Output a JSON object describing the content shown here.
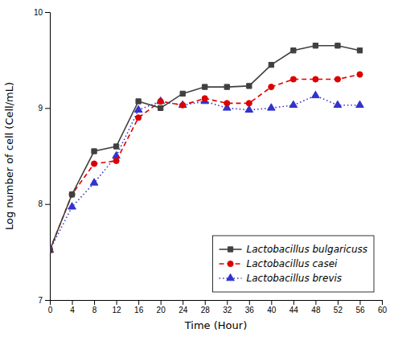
{
  "chart_data": {
    "type": "line",
    "x": [
      0,
      4,
      8,
      12,
      16,
      20,
      24,
      28,
      32,
      36,
      40,
      44,
      48,
      52,
      56
    ],
    "series": [
      {
        "name": "Lactobacillus bulgaricuss",
        "color": "#404040",
        "marker": "square",
        "line_style": "solid",
        "values": [
          7.52,
          8.1,
          8.55,
          8.6,
          9.07,
          9.0,
          9.15,
          9.22,
          9.22,
          9.23,
          9.45,
          9.6,
          9.65,
          9.65,
          9.6
        ]
      },
      {
        "name": "Lactobacillus casei",
        "color": "#dd0000",
        "marker": "circle",
        "line_style": "dashed",
        "values": [
          7.52,
          8.1,
          8.42,
          8.45,
          8.9,
          9.07,
          9.03,
          9.1,
          9.05,
          9.05,
          9.22,
          9.3,
          9.3,
          9.3,
          9.35
        ]
      },
      {
        "name": "Lactobacillus brevis",
        "color": "#3333cc",
        "marker": "triangle",
        "line_style": "dotted",
        "values": [
          7.52,
          7.97,
          8.22,
          8.5,
          8.98,
          9.07,
          9.03,
          9.07,
          9.0,
          8.98,
          9.0,
          9.03,
          9.13,
          9.03,
          9.03
        ]
      }
    ],
    "xlim": [
      0,
      60
    ],
    "ylim": [
      7,
      10
    ],
    "xticks": [
      0,
      4,
      8,
      12,
      16,
      20,
      24,
      28,
      32,
      36,
      40,
      44,
      48,
      52,
      56,
      60
    ],
    "yticks": [
      7,
      8,
      9,
      10
    ],
    "xlabel": "Time (Hour)",
    "ylabel": "Log number of cell (Cell/mL)",
    "legend": "lower right"
  }
}
